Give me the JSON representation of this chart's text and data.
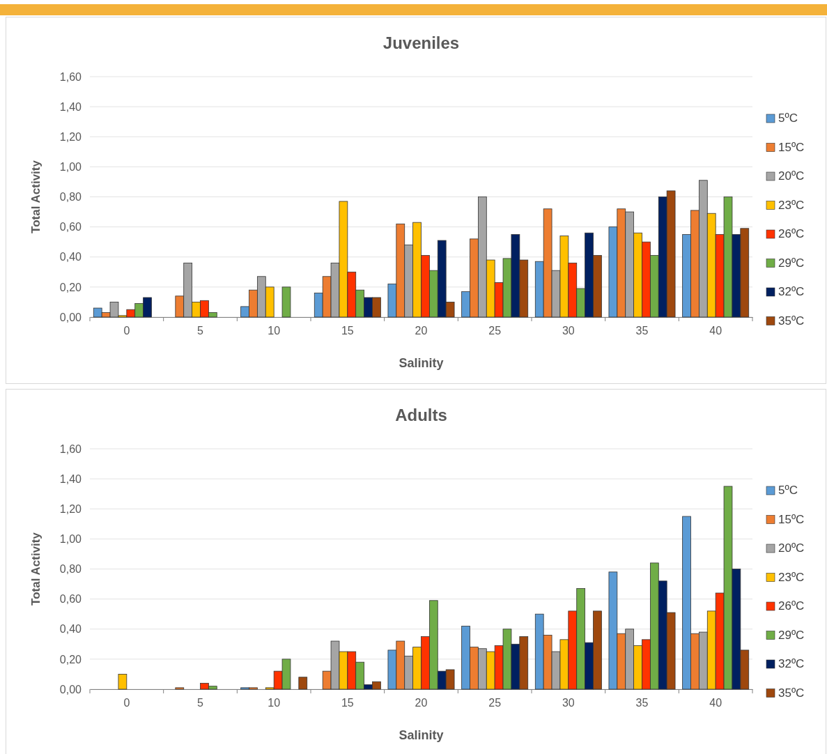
{
  "chart_data": [
    {
      "type": "bar",
      "title": "Juveniles",
      "xlabel": "Salinity",
      "ylabel": "Total Activity",
      "categories": [
        "0",
        "5",
        "10",
        "15",
        "20",
        "25",
        "30",
        "35",
        "40"
      ],
      "ylim": [
        0,
        1.6
      ],
      "yticks": [
        {
          "value": 0,
          "label": "0,00"
        },
        {
          "value": 0.2,
          "label": "0,20"
        },
        {
          "value": 0.4,
          "label": "0,40"
        },
        {
          "value": 0.6,
          "label": "0,60"
        },
        {
          "value": 0.8,
          "label": "0,80"
        },
        {
          "value": 1,
          "label": "1,00"
        },
        {
          "value": 1.2,
          "label": "1,20"
        },
        {
          "value": 1.4,
          "label": "1,40"
        },
        {
          "value": 1.6,
          "label": "1,60"
        }
      ],
      "grid": "y",
      "legend": "right",
      "series": [
        {
          "name": "5ºC",
          "color": "#5b9bd5",
          "values": [
            0.06,
            0,
            0.07,
            0.16,
            0.22,
            0.17,
            0.37,
            0.6,
            0.55
          ]
        },
        {
          "name": "15ºC",
          "color": "#ed7d31",
          "values": [
            0.03,
            0.14,
            0.18,
            0.27,
            0.62,
            0.52,
            0.72,
            0.72,
            0.71
          ]
        },
        {
          "name": "20ºC",
          "color": "#a5a5a5",
          "values": [
            0.1,
            0.36,
            0.27,
            0.36,
            0.48,
            0.8,
            0.31,
            0.7,
            0.91
          ]
        },
        {
          "name": "23ºC",
          "color": "#ffc000",
          "values": [
            0.01,
            0.1,
            0.2,
            0.77,
            0.63,
            0.38,
            0.54,
            0.56,
            0.69
          ]
        },
        {
          "name": "26ºC",
          "color": "#ff3300",
          "values": [
            0.05,
            0.11,
            0,
            0.3,
            0.41,
            0.23,
            0.36,
            0.5,
            0.55
          ]
        },
        {
          "name": "29ºC",
          "color": "#70ad47",
          "values": [
            0.09,
            0.03,
            0.2,
            0.18,
            0.31,
            0.39,
            0.19,
            0.41,
            0.8
          ]
        },
        {
          "name": "32ºC",
          "color": "#002060",
          "values": [
            0.13,
            0,
            0,
            0.13,
            0.51,
            0.55,
            0.56,
            0.8,
            0.55
          ]
        },
        {
          "name": "35ºC",
          "color": "#9e480e",
          "values": [
            0,
            0,
            0,
            0.13,
            0.1,
            0.38,
            0.41,
            0.84,
            0.59
          ]
        }
      ]
    },
    {
      "type": "bar",
      "title": "Adults",
      "xlabel": "Salinity",
      "ylabel": "Total Activity",
      "categories": [
        "0",
        "5",
        "10",
        "15",
        "20",
        "25",
        "30",
        "35",
        "40"
      ],
      "ylim": [
        0,
        1.6
      ],
      "yticks": [
        {
          "value": 0,
          "label": "0,00"
        },
        {
          "value": 0.2,
          "label": "0,20"
        },
        {
          "value": 0.4,
          "label": "0,40"
        },
        {
          "value": 0.6,
          "label": "0,60"
        },
        {
          "value": 0.8,
          "label": "0,80"
        },
        {
          "value": 1,
          "label": "1,00"
        },
        {
          "value": 1.2,
          "label": "1,20"
        },
        {
          "value": 1.4,
          "label": "1,40"
        },
        {
          "value": 1.6,
          "label": "1,60"
        }
      ],
      "grid": "y",
      "legend": "right",
      "series": [
        {
          "name": "5ºC",
          "color": "#5b9bd5",
          "values": [
            0,
            0,
            0.01,
            0,
            0.26,
            0.42,
            0.5,
            0.78,
            1.15
          ]
        },
        {
          "name": "15ºC",
          "color": "#ed7d31",
          "values": [
            0,
            0.01,
            0.01,
            0.12,
            0.32,
            0.28,
            0.36,
            0.37,
            0.37
          ]
        },
        {
          "name": "20ºC",
          "color": "#a5a5a5",
          "values": [
            0,
            0,
            0,
            0.32,
            0.22,
            0.27,
            0.25,
            0.4,
            0.38
          ]
        },
        {
          "name": "23ºC",
          "color": "#ffc000",
          "values": [
            0.1,
            0,
            0.01,
            0.25,
            0.28,
            0.25,
            0.33,
            0.29,
            0.52
          ]
        },
        {
          "name": "26ºC",
          "color": "#ff3300",
          "values": [
            0,
            0.04,
            0.12,
            0.25,
            0.35,
            0.29,
            0.52,
            0.33,
            0.64
          ]
        },
        {
          "name": "29ºC",
          "color": "#70ad47",
          "values": [
            0,
            0.02,
            0.2,
            0.18,
            0.59,
            0.4,
            0.67,
            0.84,
            1.35
          ]
        },
        {
          "name": "32ºC",
          "color": "#002060",
          "values": [
            0,
            0,
            0,
            0.03,
            0.12,
            0.3,
            0.31,
            0.72,
            0.8
          ]
        },
        {
          "name": "35ºC",
          "color": "#9e480e",
          "values": [
            0,
            0,
            0.08,
            0.05,
            0.13,
            0.35,
            0.52,
            0.51,
            0.26
          ]
        }
      ]
    }
  ]
}
